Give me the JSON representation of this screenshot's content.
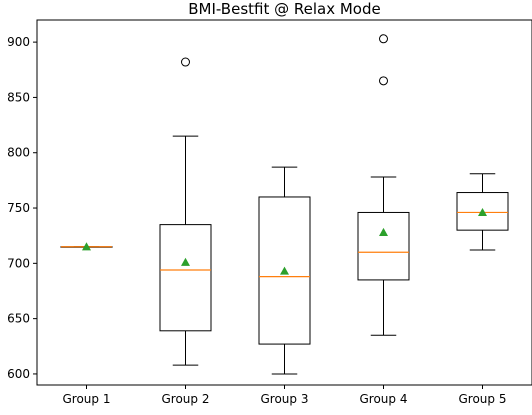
{
  "chart_data": {
    "type": "box",
    "title": "BMI-Bestfit @ Relax Mode",
    "xlabel": "",
    "ylabel": "",
    "ylim": [
      590,
      920
    ],
    "yticks": [
      600,
      650,
      700,
      750,
      800,
      850,
      900
    ],
    "grid": false,
    "categories": [
      "Group 1",
      "Group 2",
      "Group 3",
      "Group 4",
      "Group 5"
    ],
    "boxes": [
      {
        "category": "Group 1",
        "whisker_low": 715,
        "q1": 715,
        "median": 715,
        "q3": 715,
        "whisker_high": 715,
        "mean": 715,
        "outliers": []
      },
      {
        "category": "Group 2",
        "whisker_low": 608,
        "q1": 639,
        "median": 694,
        "q3": 735,
        "whisker_high": 815,
        "mean": 701,
        "outliers": [
          882
        ]
      },
      {
        "category": "Group 3",
        "whisker_low": 600,
        "q1": 627,
        "median": 688,
        "q3": 760,
        "whisker_high": 787,
        "mean": 693,
        "outliers": []
      },
      {
        "category": "Group 4",
        "whisker_low": 635,
        "q1": 685,
        "median": 710,
        "q3": 746,
        "whisker_high": 778,
        "mean": 728,
        "outliers": [
          865,
          903
        ]
      },
      {
        "category": "Group 5",
        "whisker_low": 712,
        "q1": 730,
        "median": 746,
        "q3": 764,
        "whisker_high": 781,
        "mean": 746,
        "outliers": []
      }
    ],
    "colors": {
      "box": "#000000",
      "median": "#ff7f0e",
      "mean": "#2ca02c",
      "outlier": "#000000"
    }
  }
}
